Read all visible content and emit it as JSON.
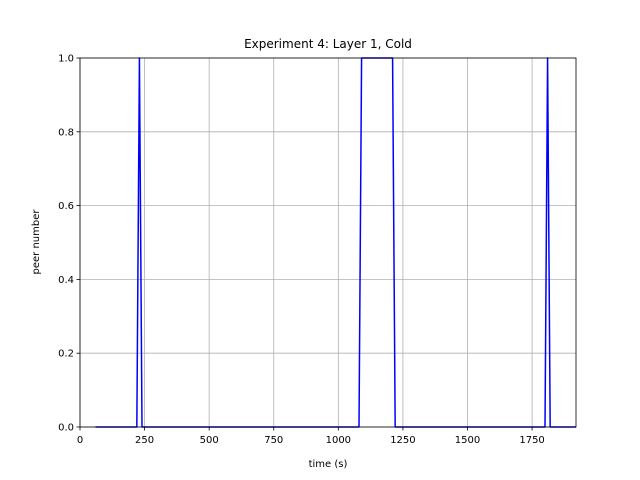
{
  "chart_data": {
    "type": "line",
    "title": "Experiment 4: Layer 1, Cold",
    "xlabel": "time (s)",
    "ylabel": "peer number",
    "xlim": [
      0,
      1920
    ],
    "ylim": [
      0,
      1.0
    ],
    "xticks": [
      0,
      250,
      500,
      750,
      1000,
      1250,
      1500,
      1750
    ],
    "xtick_labels": [
      "0",
      "250",
      "500",
      "750",
      "1000",
      "1250",
      "1500",
      "1750"
    ],
    "yticks": [
      0.0,
      0.2,
      0.4,
      0.6,
      0.8,
      1.0
    ],
    "ytick_labels": [
      "0.0",
      "0.2",
      "0.4",
      "0.6",
      "0.8",
      "1.0"
    ],
    "grid": true,
    "series": [
      {
        "color": "#0000ff",
        "x": [
          60,
          220,
          230,
          240,
          1080,
          1090,
          1210,
          1220,
          1800,
          1810,
          1820,
          1920
        ],
        "y": [
          0,
          0,
          1,
          0,
          0,
          1,
          1,
          0,
          0,
          1,
          0,
          0
        ]
      }
    ]
  }
}
